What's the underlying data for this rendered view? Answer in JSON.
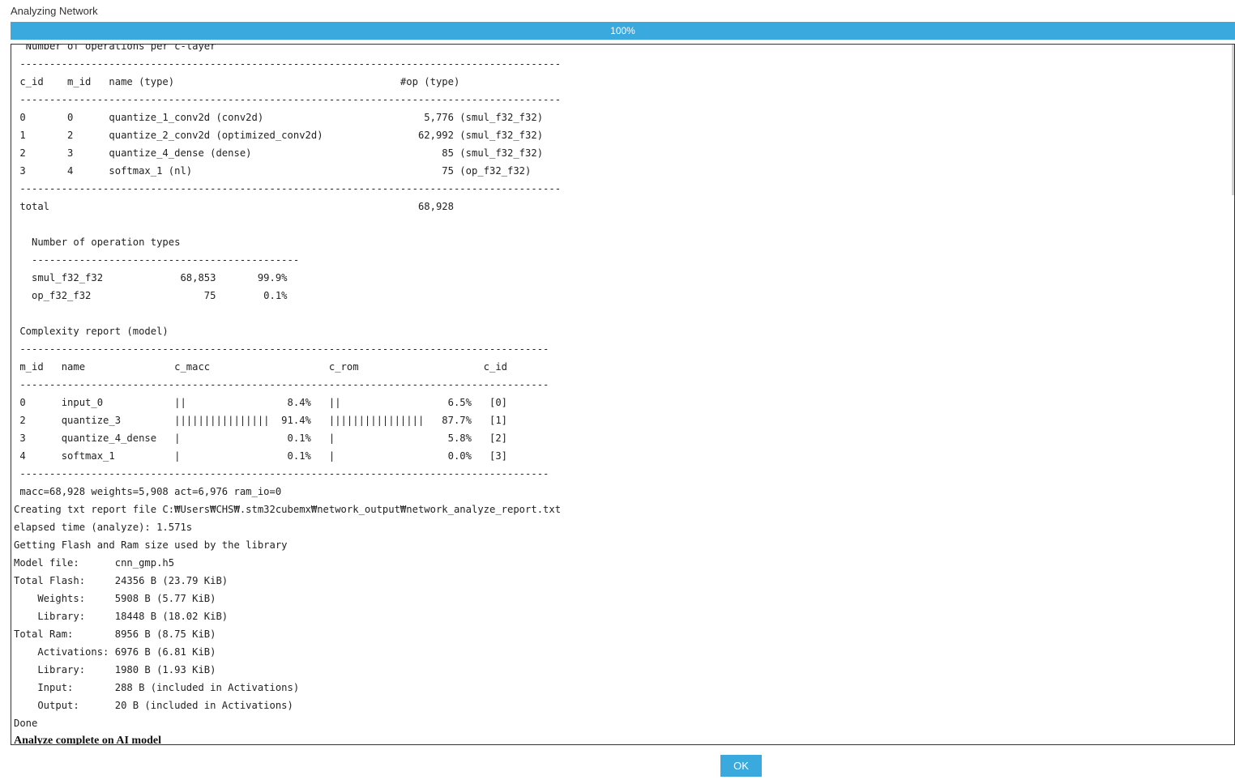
{
  "window": {
    "title": "Analyzing Network"
  },
  "progress": {
    "label": "100%",
    "value": 100
  },
  "console": {
    "lines": [
      "  Number of operations per c-layer",
      " -------------------------------------------------------------------------------------------",
      " c_id    m_id   name (type)                                      #op (type)",
      " -------------------------------------------------------------------------------------------",
      " 0       0      quantize_1_conv2d (conv2d)                           5,776 (smul_f32_f32)",
      " 1       2      quantize_2_conv2d (optimized_conv2d)                62,992 (smul_f32_f32)",
      " 2       3      quantize_4_dense (dense)                                85 (smul_f32_f32)",
      " 3       4      softmax_1 (nl)                                          75 (op_f32_f32)",
      " -------------------------------------------------------------------------------------------",
      " total                                                              68,928",
      "",
      "   Number of operation types",
      "   ---------------------------------------------",
      "   smul_f32_f32             68,853       99.9%",
      "   op_f32_f32                   75        0.1%",
      "",
      " Complexity report (model)",
      " -----------------------------------------------------------------------------------------",
      " m_id   name               c_macc                    c_rom                     c_id",
      " -----------------------------------------------------------------------------------------",
      " 0      input_0            ||                 8.4%   ||                  6.5%   [0]",
      " 2      quantize_3         ||||||||||||||||  91.4%   ||||||||||||||||   87.7%   [1]",
      " 3      quantize_4_dense   |                  0.1%   |                   5.8%   [2]",
      " 4      softmax_1          |                  0.1%   |                   0.0%   [3]",
      " -----------------------------------------------------------------------------------------",
      " macc=68,928 weights=5,908 act=6,976 ram_io=0",
      "Creating txt report file C:₩Users₩CHS₩.stm32cubemx₩network_output₩network_analyze_report.txt",
      "elapsed time (analyze): 1.571s",
      "Getting Flash and Ram size used by the library",
      "Model file:      cnn_gmp.h5",
      "Total Flash:     24356 B (23.79 KiB)",
      "    Weights:     5908 B (5.77 KiB)",
      "    Library:     18448 B (18.02 KiB)",
      "Total Ram:       8956 B (8.75 KiB)",
      "    Activations: 6976 B (6.81 KiB)",
      "    Library:     1980 B (1.93 KiB)",
      "    Input:       288 B (included in Activations)",
      "    Output:      20 B (included in Activations)",
      "Done"
    ],
    "final_message": "Analyze complete on AI model"
  },
  "buttons": {
    "ok_label": "OK"
  },
  "colors": {
    "accent": "#3aa9dd",
    "border": "#333333"
  }
}
